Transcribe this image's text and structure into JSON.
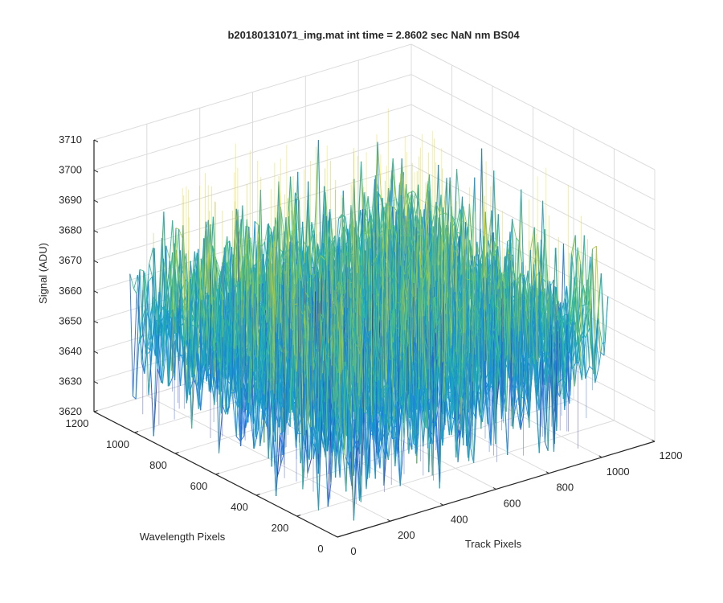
{
  "chart_data": {
    "type": "surface",
    "title": "b20180131071_img.mat int time = 2.8602 sec  NaN nm BS04",
    "xlabel": "Track Pixels",
    "ylabel": "Wavelength Pixels",
    "zlabel": "Signal (ADU)",
    "xlim": [
      0,
      1200
    ],
    "ylim": [
      0,
      1200
    ],
    "zlim": [
      3620,
      3710
    ],
    "xticks": [
      0,
      200,
      400,
      600,
      800,
      1000,
      1200
    ],
    "yticks": [
      0,
      200,
      400,
      600,
      800,
      1000,
      1200
    ],
    "zticks": [
      3620,
      3630,
      3640,
      3650,
      3660,
      3670,
      3680,
      3690,
      3700,
      3710
    ],
    "data_extent": {
      "x": [
        1,
        1024
      ],
      "y": [
        1,
        1024
      ]
    },
    "signal_mean": 3658,
    "signal_typical_range": [
      3635,
      3685
    ],
    "signal_extreme_range": [
      3620,
      3710
    ],
    "grid": true,
    "colormap": "parula",
    "colors": {
      "low": "#0072bd",
      "mid": "#1fb1b0",
      "high": "#e6c21f"
    }
  }
}
